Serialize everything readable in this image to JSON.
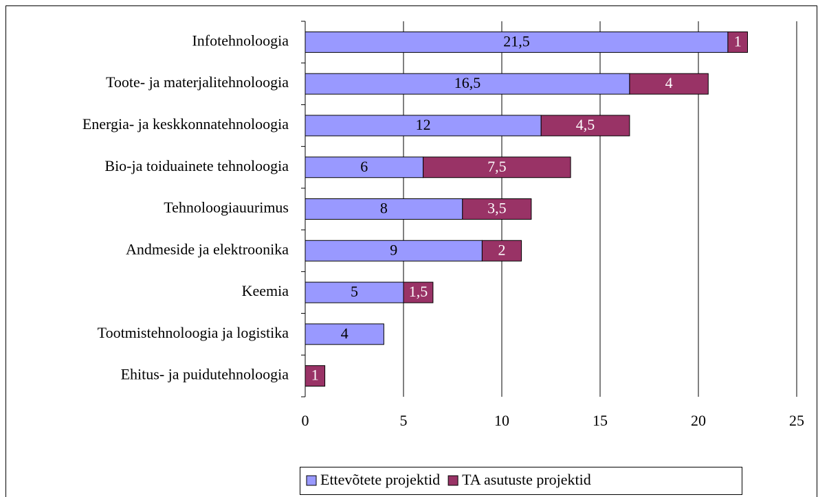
{
  "chart_data": {
    "type": "stacked-barh",
    "categories": [
      "Infotehnoloogia",
      "Toote- ja materjalitehnoloogia",
      "Energia- ja keskkonnatehnoloogia",
      "Bio-ja toiduainete tehnoloogia",
      "Tehnoloogiauurimus",
      "Andmeside ja elektroonika",
      "Keemia",
      "Tootmistehnoloogia ja logistika",
      "Ehitus- ja puidutehnoloogia"
    ],
    "series": [
      {
        "name": "Ettevõtete projektid",
        "color": "#9999ff",
        "values": [
          21.5,
          16.5,
          12,
          6,
          8,
          9,
          5,
          4,
          null
        ],
        "value_labels": [
          "21,5",
          "16,5",
          "12",
          "6",
          "8",
          "9",
          "5",
          "4",
          null
        ]
      },
      {
        "name": "TA asutuste projektid",
        "color": "#993366",
        "values": [
          1,
          4,
          4.5,
          7.5,
          3.5,
          2,
          1.5,
          null,
          1
        ],
        "value_labels": [
          "1",
          "4",
          "4,5",
          "7,5",
          "3,5",
          "2",
          "1,5",
          null,
          "1"
        ]
      }
    ],
    "xlim": [
      0,
      25
    ],
    "xticks": [
      0,
      5,
      10,
      15,
      20,
      25
    ],
    "grid": true,
    "legend": "bottom"
  }
}
